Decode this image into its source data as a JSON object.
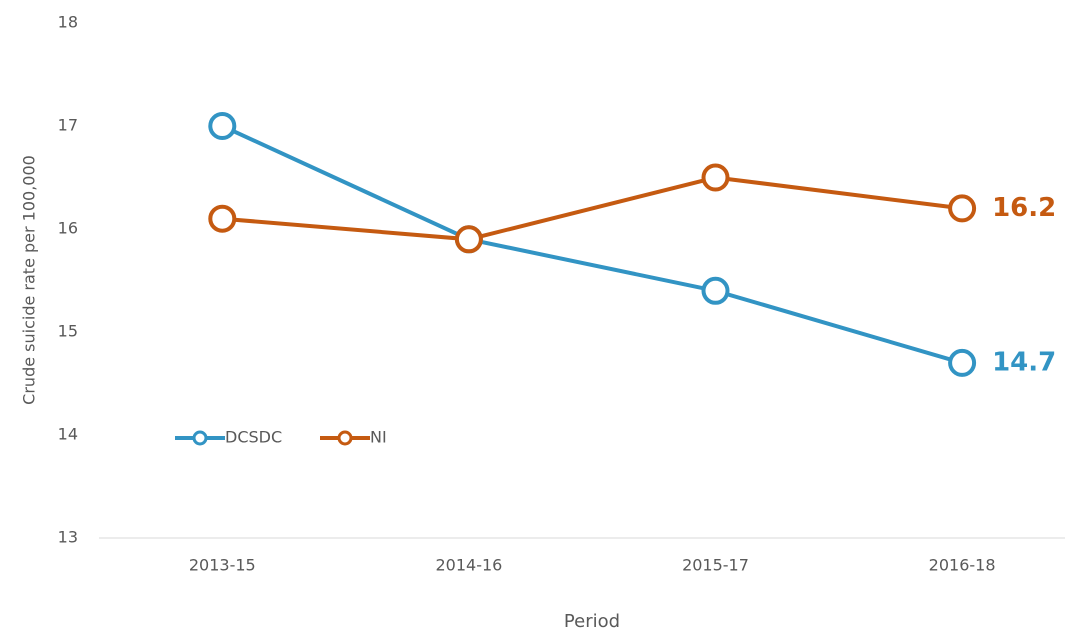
{
  "chart_data": {
    "type": "line",
    "categories": [
      "2013-15",
      "2014-16",
      "2015-17",
      "2016-18"
    ],
    "series": [
      {
        "name": "DCSDC",
        "color": "#3294c4",
        "values": [
          17,
          15.9,
          15.4,
          14.7
        ]
      },
      {
        "name": "NI",
        "color": "#c55a11",
        "values": [
          16.1,
          15.9,
          16.5,
          16.2
        ]
      }
    ],
    "ylim": [
      13,
      18
    ],
    "yticks": [
      13,
      14,
      15,
      16,
      17,
      18
    ],
    "y_label": "Crude suicide rate per 100,000",
    "x_label": "Period",
    "legend": "lower left",
    "grid": false
  }
}
